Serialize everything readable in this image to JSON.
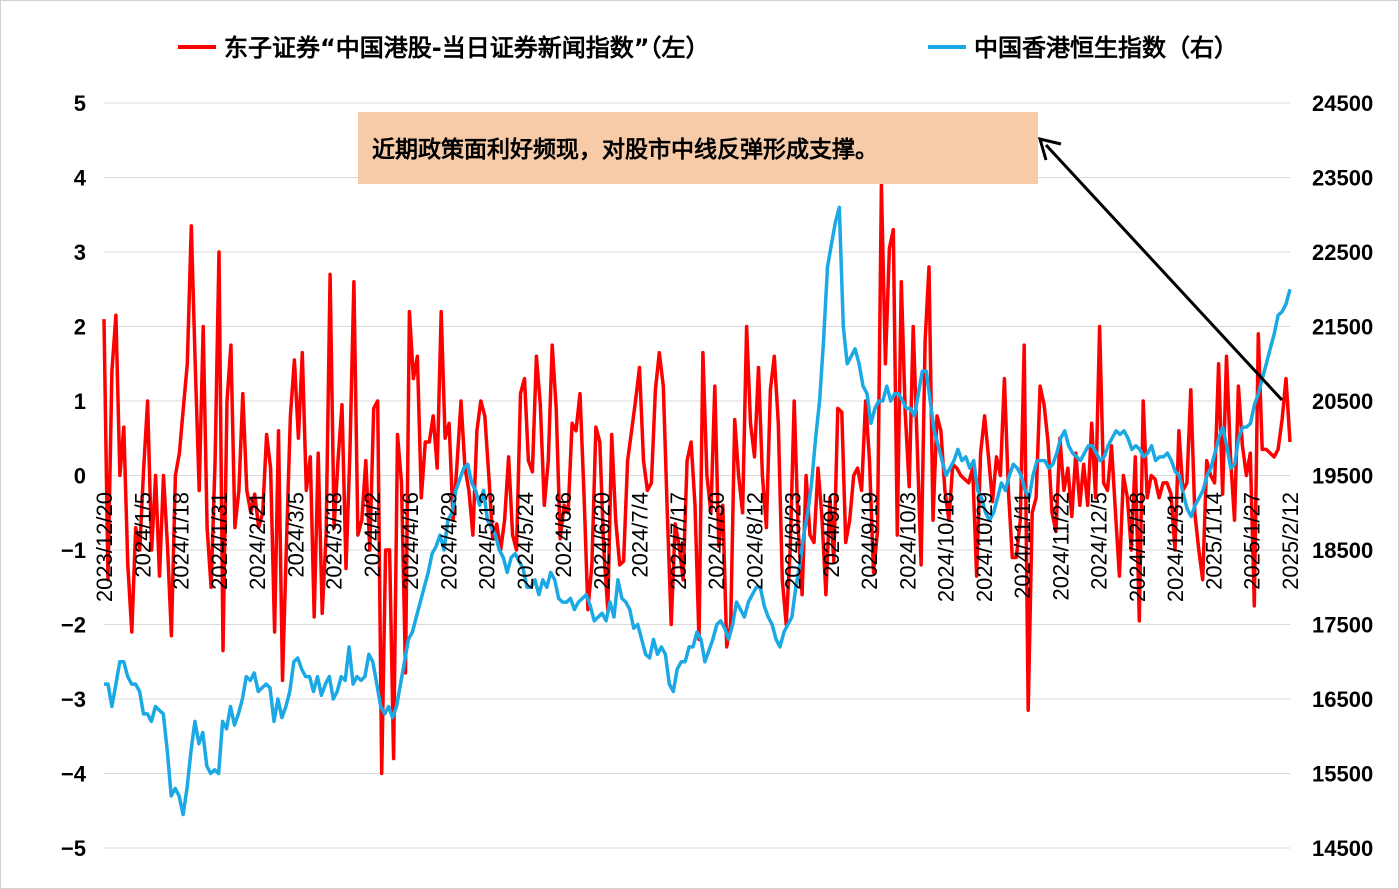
{
  "chart_data": {
    "type": "line",
    "title": "",
    "xlabel": "",
    "ylabel": "",
    "ylim": [
      -5,
      5
    ],
    "y2lim": [
      14500,
      24500
    ],
    "grid": true,
    "legend": "top",
    "y_ticks": [
      "5",
      "4",
      "3",
      "2",
      "1",
      "0",
      "−1",
      "−2",
      "−3",
      "−4",
      "−5"
    ],
    "y2_ticks": [
      "24500",
      "23500",
      "22500",
      "21500",
      "20500",
      "19500",
      "18500",
      "17500",
      "16500",
      "15500",
      "14500"
    ],
    "x_tick_labels": [
      "2023/12/20",
      "2024/1/5",
      "2024/1/18",
      "2024/1/31",
      "2024/2/21",
      "2024/3/5",
      "2024/3/18",
      "2024/4/2",
      "2024/4/16",
      "2024/4/29",
      "2024/5/13",
      "2024/5/24",
      "2024/6/6",
      "2024/6/20",
      "2024/7/4",
      "2024/7/17",
      "2024/7/30",
      "2024/8/12",
      "2024/8/23",
      "2024/9/5",
      "2024/9/19",
      "2024/10/3",
      "2024/10/16",
      "2024/10/29",
      "2024/11/11",
      "2024/11/22",
      "2024/12/5",
      "2024/12/18",
      "2024/12/31",
      "2025/1/14",
      "2025/1/27",
      "2025/2/12"
    ],
    "annotation": "近期政策面利好频现，对股市中线反弹形成支撑。",
    "series": [
      {
        "name": "东子证券“中国港股-当日证券新闻指数”（左）",
        "axis": "left",
        "color": "#ff0000",
        "values": [
          2.1,
          -1.4,
          1.4,
          2.15,
          0,
          0.65,
          -1.2,
          -2.1,
          -0.7,
          -1.0,
          0.1,
          1.0,
          -1.0,
          0.0,
          -1.35,
          0.0,
          -0.95,
          -2.15,
          0.0,
          0.3,
          0.9,
          1.5,
          3.35,
          1.5,
          -0.2,
          2.0,
          -0.7,
          -1.5,
          0.2,
          3.0,
          -2.35,
          1.0,
          1.75,
          -0.7,
          -0.2,
          1.1,
          -0.2,
          -0.5,
          -0.25,
          -0.7,
          -0.5,
          0.55,
          0.1,
          -2.1,
          0.6,
          -2.75,
          -0.9,
          0.8,
          1.55,
          0.5,
          1.65,
          -0.2,
          0.25,
          -1.9,
          0.3,
          -1.85,
          -0.8,
          2.7,
          -0.7,
          0.2,
          0.95,
          -1.25,
          0.3,
          2.6,
          -0.8,
          -0.6,
          0.2,
          -1.0,
          0.9,
          1.0,
          -4.0,
          -1.0,
          -1.0,
          -3.8,
          0.55,
          -0.1,
          -2.65,
          2.2,
          1.3,
          1.6,
          -0.3,
          0.45,
          0.45,
          0.8,
          0.1,
          2.2,
          0.5,
          0.7,
          -0.6,
          0.15,
          1.0,
          0.1,
          -0.2,
          -0.8,
          0.6,
          1.0,
          0.8,
          0.0,
          -0.85,
          -0.65,
          -1.0,
          -0.6,
          0.25,
          -0.8,
          -1.0,
          1.1,
          1.3,
          0.2,
          0.05,
          1.6,
          0.95,
          -0.4,
          0.2,
          1.75,
          0.9,
          -0.85,
          -0.4,
          -0.5,
          0.7,
          0.6,
          1.1,
          -0.25,
          -1.8,
          -1.2,
          0.65,
          0.45,
          -1.0,
          -1.8,
          0.55,
          -0.6,
          -1.2,
          -1.15,
          0.2,
          0.6,
          1.0,
          1.45,
          0.2,
          -0.2,
          -0.1,
          1.15,
          1.65,
          1.2,
          -0.5,
          -2.0,
          -0.65,
          -0.95,
          -1.4,
          0.2,
          0.45,
          -0.4,
          -2.2,
          1.65,
          0.0,
          -0.5,
          1.2,
          -0.95,
          -0.4,
          -2.3,
          -2.0,
          0.75,
          0.0,
          -0.5,
          2.0,
          0.7,
          0.25,
          1.45,
          0.0,
          -0.7,
          1.15,
          1.6,
          0.7,
          -1.4,
          -2.0,
          -1.0,
          1.0,
          -0.7,
          -1.6,
          0.0,
          -0.8,
          -0.9,
          0.1,
          -0.55,
          -1.6,
          -0.3,
          -1.15,
          0.9,
          0.85,
          -0.9,
          -0.6,
          0.0,
          0.1,
          -0.2,
          1.0,
          0.2,
          -1.3,
          -0.75,
          3.9,
          1.5,
          3.05,
          3.3,
          -0.8,
          2.6,
          0.85,
          -0.15,
          2.0,
          0.45,
          -1.2,
          1.8,
          2.8,
          -0.6,
          0.8,
          0.6,
          -0.2,
          -0.6,
          0.15,
          0.1,
          0.0,
          -0.05,
          -0.1,
          0.1,
          -1.35,
          0.3,
          0.8,
          0.25,
          -0.35,
          0.25,
          0.0,
          1.3,
          -0.2,
          -1.1,
          -1.1,
          -0.6,
          1.75,
          -3.15,
          -0.5,
          -0.3,
          1.2,
          0.95,
          0.45,
          -0.5,
          -0.75,
          0.5,
          -0.2,
          0.1,
          -0.55,
          0.3,
          -0.4,
          0.15,
          -0.4,
          0.7,
          -0.3,
          2.0,
          -0.1,
          -0.2,
          0.4,
          -0.5,
          -1.35,
          0.0,
          -0.3,
          -1.0,
          0.25,
          -1.95,
          1.0,
          -0.3,
          0.0,
          -0.05,
          -0.3,
          -0.1,
          -0.1,
          -0.25,
          -1.0,
          0.6,
          -0.2,
          -0.1,
          1.15,
          -0.5,
          -1.0,
          -1.4,
          0.2,
          0.0,
          -0.1,
          1.5,
          -0.25,
          1.6,
          0.25,
          -0.6,
          1.2,
          0.4,
          0.0,
          0.3,
          -1.75,
          1.9,
          0.35,
          0.35,
          0.3,
          0.25,
          0.35,
          0.75,
          1.3,
          0.45
        ]
      },
      {
        "name": "中国香港恒生指数（右）",
        "axis": "right",
        "color": "#1aa9e4",
        "values": [
          16700,
          16700,
          16400,
          16700,
          17000,
          17000,
          16800,
          16700,
          16700,
          16600,
          16300,
          16300,
          16200,
          16400,
          16350,
          16300,
          15800,
          15200,
          15300,
          15200,
          14950,
          15300,
          15800,
          16200,
          15900,
          16050,
          15600,
          15500,
          15550,
          15500,
          16200,
          16100,
          16400,
          16150,
          16300,
          16500,
          16800,
          16750,
          16850,
          16600,
          16650,
          16700,
          16650,
          16200,
          16500,
          16250,
          16400,
          16600,
          17000,
          17050,
          16900,
          16800,
          16800,
          16600,
          16800,
          16550,
          16700,
          16800,
          16500,
          16600,
          16800,
          16750,
          17200,
          16700,
          16800,
          16750,
          16800,
          17100,
          17000,
          16700,
          16400,
          16300,
          16400,
          16250,
          16400,
          16700,
          17000,
          17300,
          17400,
          17600,
          17800,
          18000,
          18200,
          18450,
          18550,
          18700,
          18500,
          18900,
          19000,
          19300,
          19450,
          19600,
          19650,
          19400,
          19300,
          19100,
          19300,
          18900,
          18800,
          18700,
          18500,
          18400,
          18200,
          18400,
          18450,
          18350,
          18250,
          18000,
          18000,
          18100,
          17900,
          18100,
          18000,
          18200,
          18100,
          17850,
          17800,
          17800,
          17850,
          17700,
          17800,
          17850,
          17900,
          17750,
          17550,
          17600,
          17650,
          17550,
          17800,
          17600,
          18100,
          17850,
          17800,
          17700,
          17450,
          17500,
          17300,
          17100,
          17050,
          17300,
          17100,
          17200,
          17100,
          16700,
          16600,
          16900,
          17000,
          17000,
          17200,
          17200,
          17400,
          17300,
          17000,
          17150,
          17300,
          17500,
          17550,
          17450,
          17300,
          17500,
          17800,
          17700,
          17600,
          17800,
          17900,
          18000,
          18000,
          17750,
          17600,
          17500,
          17300,
          17200,
          17400,
          17500,
          17600,
          18000,
          18300,
          18700,
          19000,
          19400,
          20000,
          20500,
          21300,
          22300,
          22600,
          22900,
          23100,
          21500,
          21000,
          21100,
          21200,
          21000,
          20700,
          20600,
          20200,
          20400,
          20500,
          20500,
          20700,
          20500,
          20600,
          20600,
          20500,
          20400,
          20400,
          20300,
          20600,
          20900,
          20900,
          20500,
          20100,
          19900,
          19700,
          19500,
          19600,
          19700,
          19850,
          19700,
          19750,
          19600,
          19700,
          19300,
          19200,
          19000,
          18900,
          19000,
          19200,
          19400,
          19300,
          19500,
          19650,
          19600,
          19500,
          19300,
          19200,
          19500,
          19700,
          19700,
          19700,
          19600,
          19650,
          19800,
          20000,
          20100,
          19900,
          19800,
          19750,
          19700,
          19800,
          19900,
          19900,
          19800,
          19700,
          19750,
          19900,
          20000,
          20100,
          20050,
          20100,
          20000,
          19850,
          19900,
          19850,
          19750,
          19800,
          19900,
          19700,
          19750,
          19750,
          19800,
          19700,
          19550,
          19500,
          19250,
          19050,
          18950,
          19100,
          19200,
          19300,
          19500,
          19600,
          19800,
          20000,
          20150,
          19900,
          19600,
          19650,
          20000,
          20150,
          20150,
          20200,
          20450,
          20600,
          20800,
          21000,
          21200,
          21400,
          21650,
          21700,
          21800,
          22000
        ]
      }
    ]
  }
}
